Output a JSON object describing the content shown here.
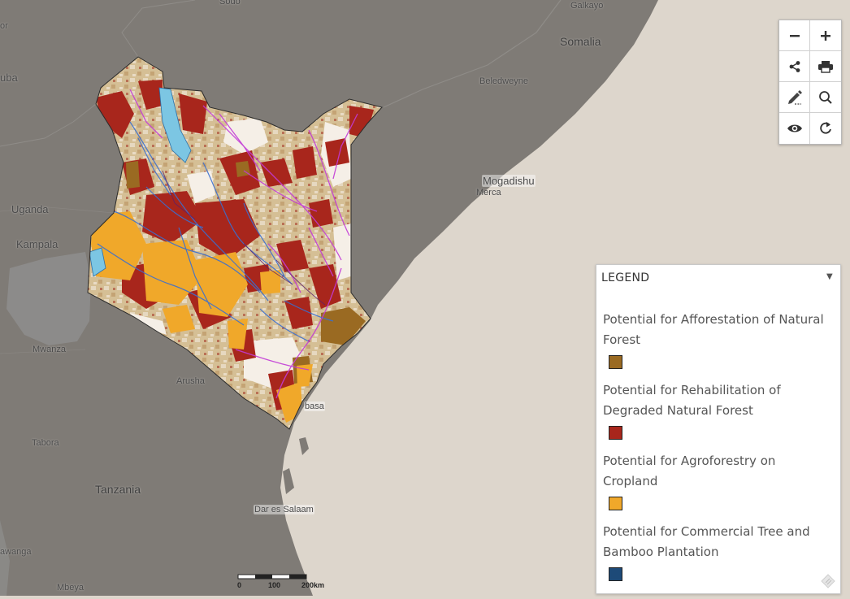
{
  "map": {
    "places": [
      {
        "id": "sodo",
        "label": "Sodo"
      },
      {
        "id": "galkayo",
        "label": "Galkayo"
      },
      {
        "id": "somalia",
        "label": "Somalia"
      },
      {
        "id": "beledweyne",
        "label": "Beledweyne"
      },
      {
        "id": "mogadishu",
        "label": "Mogadishu"
      },
      {
        "id": "merca",
        "label": "Merca"
      },
      {
        "id": "uganda",
        "label": "Uganda"
      },
      {
        "id": "kampala",
        "label": "Kampala"
      },
      {
        "id": "mwanza",
        "label": "Mwanza"
      },
      {
        "id": "arusha",
        "label": "Arusha"
      },
      {
        "id": "tabora",
        "label": "Tabora"
      },
      {
        "id": "tanzania",
        "label": "Tanzania"
      },
      {
        "id": "dar",
        "label": "Dar es Salaam"
      },
      {
        "id": "mbeya",
        "label": "Mbeya"
      },
      {
        "id": "mombasa",
        "label": "basa"
      },
      {
        "id": "or",
        "label": "or"
      },
      {
        "id": "uba",
        "label": "uba"
      },
      {
        "id": "awanga",
        "label": "awanga"
      }
    ],
    "scale": {
      "ticks": [
        "0",
        "100",
        "200km"
      ]
    }
  },
  "toolbar": {
    "buttons": [
      {
        "id": "zoom-out",
        "icon": "minus-icon",
        "label": "Zoom out"
      },
      {
        "id": "zoom-in",
        "icon": "plus-icon",
        "label": "Zoom in"
      },
      {
        "id": "share",
        "icon": "share-icon",
        "label": "Share"
      },
      {
        "id": "print",
        "icon": "print-icon",
        "label": "Print"
      },
      {
        "id": "draw",
        "icon": "pencil-icon",
        "label": "Draw"
      },
      {
        "id": "search",
        "icon": "search-icon",
        "label": "Search"
      },
      {
        "id": "visibility",
        "icon": "eye-icon",
        "label": "Visibility"
      },
      {
        "id": "reset",
        "icon": "refresh-icon",
        "label": "Reset"
      }
    ]
  },
  "legend": {
    "title": "LEGEND",
    "toggle": "▼",
    "items": [
      {
        "label": "Potential for Afforestation of Natural Forest",
        "color": "#9a6a22"
      },
      {
        "label": "Potential for Rehabilitation of Degraded Natural Forest",
        "color": "#a8261c"
      },
      {
        "label": "Potential for Agroforestry on Cropland",
        "color": "#f0a82a"
      },
      {
        "label": "Potential for Commercial Tree and Bamboo Plantation",
        "color": "#1d4a78"
      }
    ]
  },
  "colors": {
    "ocean": "#ddd6cc",
    "land": "#7f7b76",
    "kenya_base": "#d6c29a",
    "lake": "#7cc6e3",
    "river": "#3a6fd0",
    "road": "#c23bd6"
  }
}
